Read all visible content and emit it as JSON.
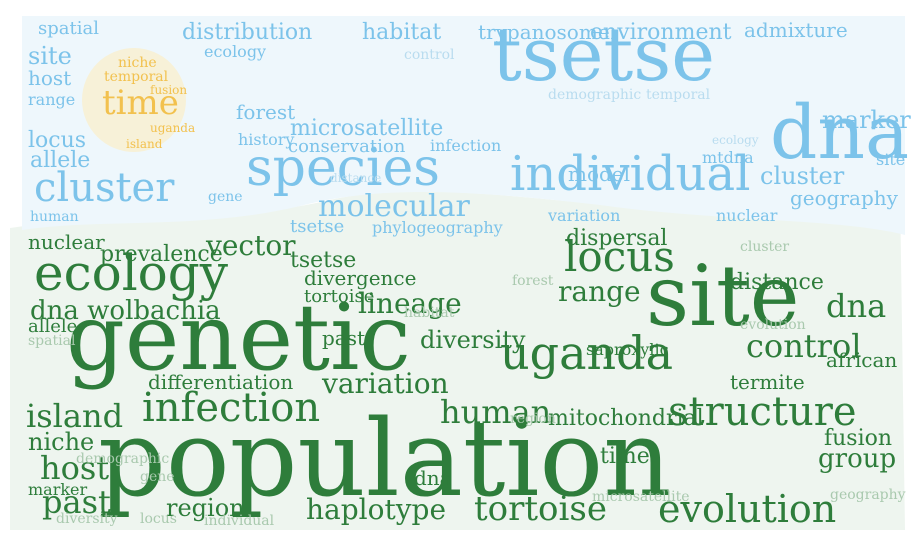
{
  "colors": {
    "ground": "#2e7d3b",
    "ground_fill": "#eef5ef",
    "sky": "#7cc3ea",
    "sky_fill": "#eef7fc",
    "sun": "#f2c14e",
    "sun_fill": "#f7f1d8",
    "faint_ground": "#a9c9ae",
    "faint_sky": "#b9dcef"
  },
  "words": {
    "population": "population",
    "genetic": "genetic",
    "site": "site",
    "ecology": "ecology",
    "locus": "locus",
    "uganda": "uganda",
    "infection": "infection",
    "structure": "structure",
    "evolution": "evolution",
    "tortoise": "tortoise",
    "island": "island",
    "host": "host",
    "niche": "niche",
    "past": "past",
    "haplotype": "haplotype",
    "human": "human",
    "region": "region",
    "control": "control",
    "variation": "variation",
    "fusion": "fusion",
    "group": "group",
    "dna": "dna",
    "dna_wolbachia": "dna wolbachia",
    "vector": "vector",
    "lineage": "lineage",
    "range": "range",
    "diversity": "diversity",
    "differentiation": "differentiation",
    "dispersal": "dispersal",
    "mitochondrial": "mitochondrial",
    "nuclear": "nuclear",
    "prevalence": "prevalence",
    "tsetse": "tsetse",
    "divergence": "divergence",
    "distance": "distance",
    "termite": "termite",
    "african": "african",
    "geography": "geography",
    "time": "time",
    "saproxylic": "saproxylic",
    "species": "species",
    "individual": "individual",
    "cluster": "cluster",
    "molecular": "molecular",
    "microsatellite": "microsatellite",
    "marker": "marker",
    "distribution": "distribution",
    "habitat": "habitat",
    "trypanosome": "trypanosome",
    "environment": "environment",
    "admixture": "admixture",
    "spatial": "spatial",
    "model": "model",
    "history": "history",
    "conservation": "conservation",
    "forest": "forest",
    "allele": "allele",
    "phylogeography": "phylogeography",
    "temporal": "temporal",
    "demographic": "demographic",
    "mtdna": "mtdna",
    "gene": "gene"
  }
}
